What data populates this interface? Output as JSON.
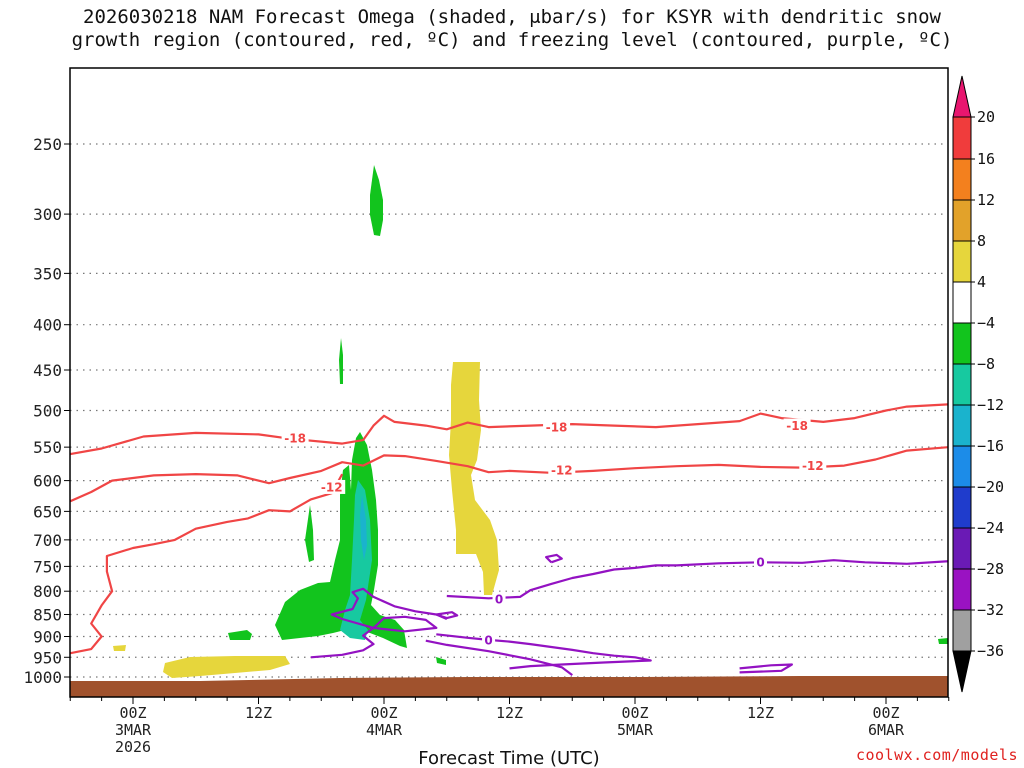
{
  "title_line1": "2026030218 NAM Forecast Omega (shaded, μbar/s) for KSYR with dendritic snow",
  "title_line2": "growth region (contoured, red, ºC) and freezing level (contoured, purple, ºC)",
  "credit": "coolwx.com/models",
  "chart_data": {
    "type": "contour-cross-section",
    "title": "2026030218 NAM Forecast Omega (shaded, μbar/s) for KSYR with dendritic snow growth region (contoured, red, ºC) and freezing level (contoured, purple, ºC)",
    "xlabel": "Forecast Time (UTC)",
    "ylabel": "",
    "y_ticks": [
      250,
      300,
      350,
      400,
      450,
      500,
      550,
      600,
      650,
      700,
      750,
      800,
      850,
      900,
      950,
      1000
    ],
    "x_ticks": [
      {
        "h": 6,
        "lines": [
          "00Z",
          "3MAR",
          "2026"
        ]
      },
      {
        "h": 18,
        "lines": [
          "12Z"
        ]
      },
      {
        "h": 30,
        "lines": [
          "00Z",
          "4MAR"
        ]
      },
      {
        "h": 42,
        "lines": [
          "12Z"
        ]
      },
      {
        "h": 54,
        "lines": [
          "00Z",
          "5MAR"
        ]
      },
      {
        "h": 66,
        "lines": [
          "12Z"
        ]
      },
      {
        "h": 78,
        "lines": [
          "00Z",
          "6MAR"
        ]
      }
    ],
    "x_range_hours": [
      0,
      84
    ],
    "y_range_hpa": [
      1030,
      200
    ],
    "grid": true,
    "colorbar": {
      "labels": [
        "20",
        "16",
        "12",
        "8",
        "4",
        "−4",
        "−8",
        "−12",
        "−16",
        "−20",
        "−24",
        "−28",
        "−32",
        "−36"
      ],
      "colors": [
        "#e8166f",
        "#f03c3c",
        "#f3801e",
        "#e2a22a",
        "#e6d63c",
        "#ffffff",
        "#12c41d",
        "#17c9a0",
        "#1ab3cd",
        "#1c8ce8",
        "#1f3ccc",
        "#6a1ab5",
        "#9a12c2",
        "#a0a0a0",
        "#000000"
      ]
    },
    "contours": [
      {
        "label": "-18",
        "color": "#f04545",
        "points": [
          [
            0,
            560
          ],
          [
            3,
            552
          ],
          [
            7,
            535
          ],
          [
            12,
            530
          ],
          [
            18,
            532
          ],
          [
            21,
            538
          ],
          [
            26,
            545
          ],
          [
            28,
            540
          ],
          [
            29,
            520
          ],
          [
            30,
            507
          ],
          [
            31,
            515
          ],
          [
            34,
            520
          ],
          [
            36,
            525
          ],
          [
            38,
            516
          ],
          [
            40,
            522
          ],
          [
            44,
            520
          ],
          [
            48,
            518
          ],
          [
            52,
            520
          ],
          [
            56,
            522
          ],
          [
            60,
            518
          ],
          [
            64,
            514
          ],
          [
            66,
            504
          ],
          [
            68,
            510
          ],
          [
            72,
            515
          ],
          [
            75,
            510
          ],
          [
            78,
            500
          ],
          [
            80,
            495
          ],
          [
            84,
            492
          ]
        ],
        "labels_at": [
          [
            21.5,
            537
          ],
          [
            46.5,
            522
          ],
          [
            69.5,
            520
          ]
        ]
      },
      {
        "label": "-12",
        "color": "#f04545",
        "points": [
          [
            0,
            633
          ],
          [
            2,
            618
          ],
          [
            4,
            600
          ],
          [
            8,
            592
          ],
          [
            12,
            590
          ],
          [
            16,
            592
          ],
          [
            19,
            604
          ],
          [
            21,
            596
          ],
          [
            24,
            585
          ],
          [
            26,
            572
          ],
          [
            28,
            577
          ],
          [
            30,
            562
          ],
          [
            32,
            563
          ],
          [
            35,
            570
          ],
          [
            38,
            578
          ],
          [
            40,
            587
          ],
          [
            42,
            585
          ],
          [
            46,
            588
          ],
          [
            50,
            585
          ],
          [
            54,
            581
          ],
          [
            58,
            578
          ],
          [
            62,
            576
          ],
          [
            66,
            579
          ],
          [
            70,
            580
          ],
          [
            74,
            577
          ],
          [
            77,
            568
          ],
          [
            80,
            555
          ],
          [
            84,
            550
          ]
        ],
        "labels_at": [
          [
            25,
            610
          ],
          [
            47,
            584
          ],
          [
            71,
            577
          ]
        ]
      },
      {
        "label": "-12",
        "color": "#f04545",
        "points": [
          [
            0,
            940
          ],
          [
            2,
            930
          ],
          [
            3,
            900
          ],
          [
            2,
            870
          ],
          [
            3,
            830
          ],
          [
            4,
            800
          ],
          [
            3.5,
            760
          ],
          [
            3.5,
            730
          ],
          [
            6,
            715
          ],
          [
            8,
            708
          ],
          [
            10,
            700
          ],
          [
            12,
            680
          ],
          [
            15,
            668
          ],
          [
            17,
            662
          ],
          [
            19,
            648
          ],
          [
            21,
            650
          ],
          [
            23,
            630
          ],
          [
            25,
            620
          ],
          [
            26,
            590
          ]
        ],
        "labels_at": []
      },
      {
        "label": "0",
        "color": "#9312c2",
        "points": [
          [
            36,
            810
          ],
          [
            40,
            815
          ],
          [
            43,
            812
          ],
          [
            44,
            798
          ],
          [
            46,
            785
          ],
          [
            48,
            773
          ],
          [
            50,
            765
          ],
          [
            52,
            756
          ],
          [
            54,
            753
          ],
          [
            56,
            748
          ],
          [
            58,
            748
          ],
          [
            62,
            744
          ],
          [
            66,
            742
          ],
          [
            70,
            743
          ],
          [
            73,
            738
          ],
          [
            76,
            742
          ],
          [
            80,
            745
          ],
          [
            84,
            740
          ]
        ],
        "labels_at": [
          [
            41,
            816
          ],
          [
            66,
            741
          ]
        ]
      },
      {
        "label": "0",
        "color": "#9312c2",
        "points": [
          [
            23,
            950
          ],
          [
            26,
            944
          ],
          [
            28,
            933
          ],
          [
            29,
            918
          ],
          [
            28,
            898
          ],
          [
            29,
            880
          ],
          [
            30,
            858
          ],
          [
            32,
            855
          ],
          [
            34,
            862
          ],
          [
            35,
            880
          ],
          [
            32,
            888
          ],
          [
            29,
            880
          ],
          [
            26,
            860
          ],
          [
            25,
            850
          ],
          [
            27,
            838
          ],
          [
            27.5,
            815
          ],
          [
            27,
            802
          ],
          [
            28,
            795
          ],
          [
            29,
            812
          ],
          [
            31,
            832
          ],
          [
            33,
            843
          ],
          [
            35,
            850
          ],
          [
            36,
            860
          ]
        ],
        "labels_at": []
      },
      {
        "label": "0",
        "color": "#9312c2",
        "points": [
          [
            35,
            895
          ],
          [
            38,
            903
          ],
          [
            40,
            908
          ],
          [
            42,
            912
          ],
          [
            44,
            918
          ],
          [
            46,
            925
          ],
          [
            48,
            932
          ],
          [
            50,
            940
          ],
          [
            52,
            946
          ],
          [
            54,
            950
          ],
          [
            55.5,
            958
          ],
          [
            51,
            963
          ],
          [
            47,
            968
          ],
          [
            44,
            972
          ],
          [
            42,
            978
          ]
        ],
        "labels_at": [
          [
            40,
            908
          ]
        ]
      },
      {
        "label": "0",
        "color": "#9312c2",
        "points": [
          [
            34,
            910
          ],
          [
            36,
            920
          ],
          [
            40,
            935
          ],
          [
            44,
            955
          ],
          [
            47,
            975
          ],
          [
            48,
            995
          ]
        ],
        "labels_at": []
      },
      {
        "label": "0",
        "color": "#9312c2",
        "points": [
          [
            64,
            978
          ],
          [
            67,
            970
          ],
          [
            69,
            968
          ],
          [
            68,
            984
          ],
          [
            64,
            988
          ]
        ],
        "labels_at": []
      },
      {
        "label": "0",
        "color": "#9312c2",
        "points": [
          [
            46,
            742
          ],
          [
            47,
            735
          ],
          [
            46.5,
            728
          ],
          [
            45.5,
            732
          ],
          [
            46,
            742
          ]
        ],
        "labels_at": []
      },
      {
        "label": "0",
        "color": "#9312c2",
        "points": [
          [
            35,
            850
          ],
          [
            36.5,
            845
          ],
          [
            37,
            852
          ],
          [
            36,
            858
          ],
          [
            35,
            850
          ]
        ],
        "labels_at": []
      }
    ]
  }
}
